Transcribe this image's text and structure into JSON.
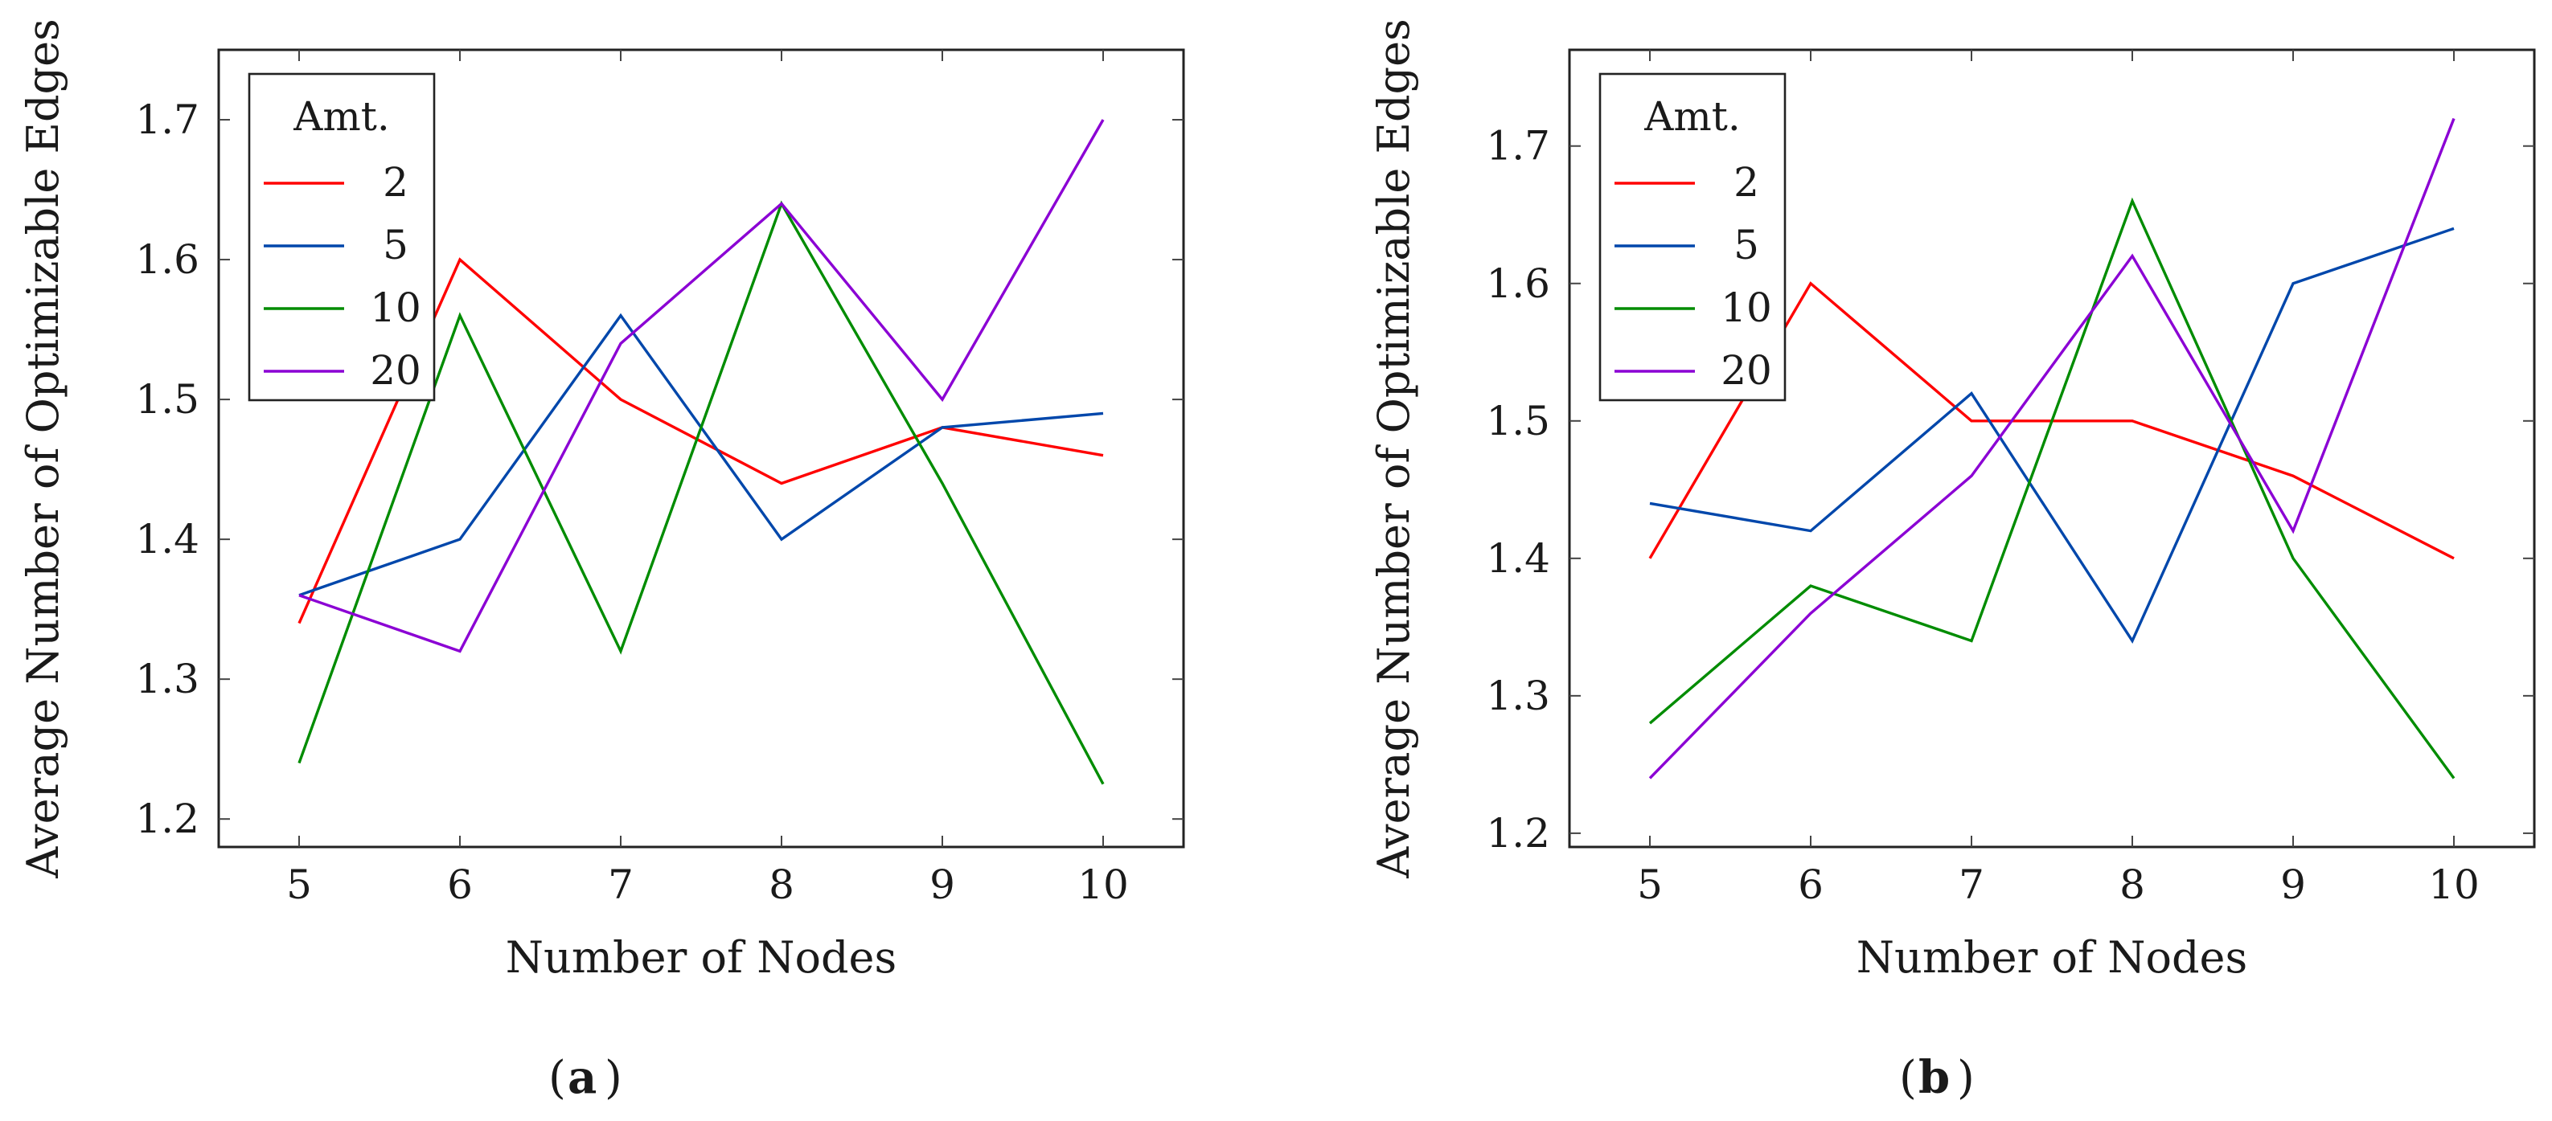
{
  "chart_data": [
    {
      "type": "line",
      "caption": "a",
      "xlabel": "Number of Nodes",
      "ylabel": "Average Number of Optimizable Edges",
      "x": [
        5,
        6,
        7,
        8,
        9,
        10
      ],
      "xlim": [
        4.5,
        10.5
      ],
      "ylim": [
        1.18,
        1.75
      ],
      "xticks": [
        "5",
        "6",
        "7",
        "8",
        "9",
        "10"
      ],
      "yticks": [
        "1.2",
        "1.3",
        "1.4",
        "1.5",
        "1.6",
        "1.7"
      ],
      "legend": {
        "title": "Amt.",
        "position": "top-left"
      },
      "series": [
        {
          "name": "2",
          "color": "#ff0000",
          "values": [
            1.34,
            1.6,
            1.5,
            1.44,
            1.48,
            1.46
          ]
        },
        {
          "name": "5",
          "color": "#0047ab",
          "values": [
            1.36,
            1.4,
            1.56,
            1.4,
            1.48,
            1.49
          ]
        },
        {
          "name": "10",
          "color": "#008c00",
          "values": [
            1.24,
            1.56,
            1.32,
            1.64,
            1.44,
            1.225
          ]
        },
        {
          "name": "20",
          "color": "#8b00d4",
          "values": [
            1.36,
            1.32,
            1.54,
            1.64,
            1.5,
            1.7
          ]
        }
      ]
    },
    {
      "type": "line",
      "caption": "b",
      "xlabel": "Number of Nodes",
      "ylabel": "Average Number of Optimizable Edges",
      "x": [
        5,
        6,
        7,
        8,
        9,
        10
      ],
      "xlim": [
        4.5,
        10.5
      ],
      "ylim": [
        1.19,
        1.77
      ],
      "xticks": [
        "5",
        "6",
        "7",
        "8",
        "9",
        "10"
      ],
      "yticks": [
        "1.2",
        "1.3",
        "1.4",
        "1.5",
        "1.6",
        "1.7"
      ],
      "legend": {
        "title": "Amt.",
        "position": "top-left"
      },
      "series": [
        {
          "name": "2",
          "color": "#ff0000",
          "values": [
            1.4,
            1.6,
            1.5,
            1.5,
            1.46,
            1.4
          ]
        },
        {
          "name": "5",
          "color": "#0047ab",
          "values": [
            1.44,
            1.42,
            1.52,
            1.34,
            1.6,
            1.64
          ]
        },
        {
          "name": "10",
          "color": "#008c00",
          "values": [
            1.28,
            1.38,
            1.34,
            1.66,
            1.4,
            1.24
          ]
        },
        {
          "name": "20",
          "color": "#8b00d4",
          "values": [
            1.24,
            1.36,
            1.46,
            1.62,
            1.42,
            1.72
          ]
        }
      ]
    }
  ]
}
